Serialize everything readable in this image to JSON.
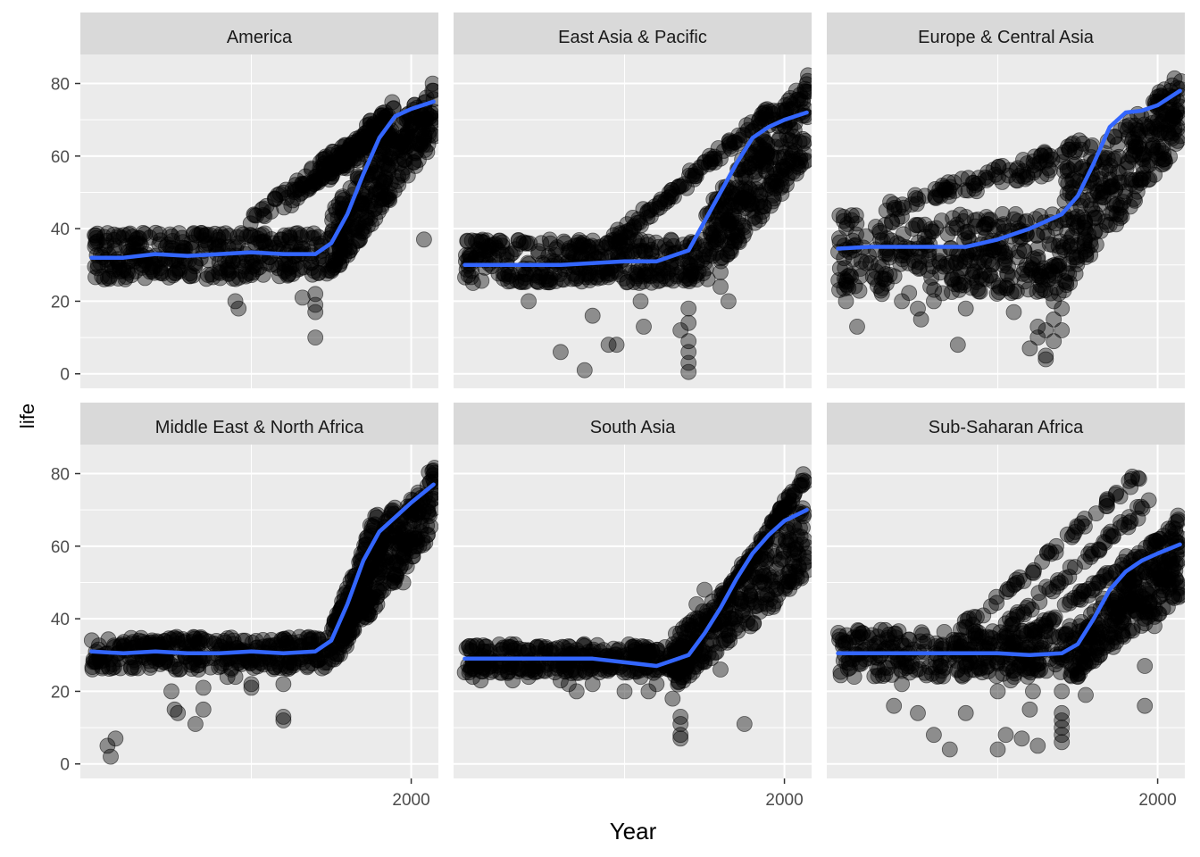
{
  "chart_data": {
    "type": "scatter",
    "xlabel": "Year",
    "ylabel": "life",
    "x_ticks": [
      2000
    ],
    "y_ticks": [
      0,
      20,
      40,
      60,
      80
    ],
    "xlim": [
      1793,
      2017
    ],
    "ylim": [
      -4,
      88
    ],
    "colors": {
      "panel_bg": "#EBEBEB",
      "strip_bg": "#D9D9D9",
      "grid": "#FFFFFF",
      "points": "#000000",
      "smooth": "#3366FF"
    },
    "facets": [
      {
        "title": "America",
        "band": {
          "x0": 1800,
          "x1": 1950,
          "lo": 26,
          "hi": 39
        },
        "arms": [
          {
            "x0": 1900,
            "y0": 42,
            "x1": 1985,
            "y1": 72
          },
          {
            "x0": 1920,
            "y0": 46,
            "x1": 1990,
            "y1": 74
          },
          {
            "x0": 1935,
            "y0": 50,
            "x1": 1985,
            "y1": 70
          },
          {
            "x0": 1945,
            "y0": 54,
            "x1": 1988,
            "y1": 66
          }
        ],
        "rise": {
          "x0": 1950,
          "x1": 2015,
          "lo0": 26,
          "lo1": 64,
          "hi0": 45,
          "hi1": 82
        },
        "outliers": [
          [
            1890,
            20
          ],
          [
            1892,
            18
          ],
          [
            1932,
            21
          ],
          [
            1940,
            17
          ],
          [
            1940,
            19
          ],
          [
            1940,
            10
          ],
          [
            1940,
            22
          ],
          [
            2008,
            37
          ]
        ],
        "smooth": [
          [
            1800,
            32
          ],
          [
            1820,
            32
          ],
          [
            1840,
            33
          ],
          [
            1860,
            32.5
          ],
          [
            1880,
            33
          ],
          [
            1900,
            33.5
          ],
          [
            1920,
            33
          ],
          [
            1940,
            33
          ],
          [
            1950,
            36
          ],
          [
            1960,
            44
          ],
          [
            1970,
            55
          ],
          [
            1980,
            65
          ],
          [
            1990,
            71
          ],
          [
            2000,
            73
          ],
          [
            2014,
            75
          ]
        ]
      },
      {
        "title": "East Asia & Pacific",
        "band": {
          "x0": 1800,
          "x1": 1950,
          "lo": 25,
          "hi": 37
        },
        "arms": [
          {
            "x0": 1890,
            "y0": 36,
            "x1": 1990,
            "y1": 72
          },
          {
            "x0": 1900,
            "y0": 38,
            "x1": 1995,
            "y1": 74
          }
        ],
        "rise": {
          "x0": 1950,
          "x1": 2015,
          "lo0": 25,
          "lo1": 58,
          "hi0": 45,
          "hi1": 84
        },
        "outliers": [
          [
            1840,
            20
          ],
          [
            1860,
            6
          ],
          [
            1875,
            1
          ],
          [
            1880,
            16
          ],
          [
            1890,
            8
          ],
          [
            1895,
            8
          ],
          [
            1910,
            20
          ],
          [
            1912,
            13
          ],
          [
            1925,
            47
          ],
          [
            1935,
            12
          ],
          [
            1940,
            0.5
          ],
          [
            1940,
            3
          ],
          [
            1940,
            6
          ],
          [
            1940,
            9
          ],
          [
            1940,
            14
          ],
          [
            1940,
            18
          ],
          [
            1960,
            28
          ],
          [
            1960,
            24
          ],
          [
            1965,
            20
          ],
          [
            1975,
            56
          ],
          [
            1980,
            45
          ]
        ],
        "smooth": [
          [
            1800,
            30
          ],
          [
            1820,
            30
          ],
          [
            1840,
            30
          ],
          [
            1860,
            30
          ],
          [
            1880,
            30.5
          ],
          [
            1900,
            31
          ],
          [
            1920,
            31
          ],
          [
            1940,
            34
          ],
          [
            1950,
            42
          ],
          [
            1960,
            50
          ],
          [
            1970,
            58
          ],
          [
            1980,
            65
          ],
          [
            1990,
            68
          ],
          [
            2000,
            70
          ],
          [
            2014,
            72
          ]
        ]
      },
      {
        "title": "Europe & Central Asia",
        "band": {
          "x0": 1800,
          "x1": 1940,
          "lo": 22,
          "hi": 44
        },
        "arms": [
          {
            "x0": 1830,
            "y0": 46,
            "x1": 1950,
            "y1": 58
          },
          {
            "x0": 1860,
            "y0": 50,
            "x1": 1960,
            "y1": 64
          }
        ],
        "rise": {
          "x0": 1940,
          "x1": 2015,
          "lo0": 22,
          "lo1": 64,
          "hi0": 52,
          "hi1": 84
        },
        "outliers": [
          [
            1805,
            20
          ],
          [
            1812,
            13
          ],
          [
            1840,
            20
          ],
          [
            1850,
            18
          ],
          [
            1852,
            15
          ],
          [
            1860,
            20
          ],
          [
            1875,
            8
          ],
          [
            1880,
            18
          ],
          [
            1910,
            17
          ],
          [
            1920,
            7
          ],
          [
            1925,
            10
          ],
          [
            1925,
            13
          ],
          [
            1930,
            5
          ],
          [
            1930,
            4
          ],
          [
            1930,
            12
          ],
          [
            1935,
            15
          ],
          [
            1935,
            9
          ],
          [
            1935,
            20
          ],
          [
            1940,
            12
          ],
          [
            1940,
            18
          ],
          [
            1945,
            25
          ],
          [
            1995,
            59
          ]
        ],
        "smooth": [
          [
            1800,
            34.5
          ],
          [
            1820,
            35
          ],
          [
            1840,
            35
          ],
          [
            1860,
            35
          ],
          [
            1880,
            35
          ],
          [
            1900,
            37
          ],
          [
            1920,
            40
          ],
          [
            1940,
            44
          ],
          [
            1950,
            49
          ],
          [
            1960,
            58
          ],
          [
            1970,
            68
          ],
          [
            1980,
            72
          ],
          [
            1990,
            72.5
          ],
          [
            2000,
            74
          ],
          [
            2014,
            78
          ]
        ]
      },
      {
        "title": "Middle East & North Africa",
        "band": {
          "x0": 1800,
          "x1": 1950,
          "lo": 26,
          "hi": 35
        },
        "arms": [
          {
            "x0": 1950,
            "y0": 35,
            "x1": 1980,
            "y1": 70
          },
          {
            "x0": 1960,
            "y0": 36,
            "x1": 1990,
            "y1": 72
          }
        ],
        "rise": {
          "x0": 1950,
          "x1": 2015,
          "lo0": 27,
          "lo1": 64,
          "hi0": 40,
          "hi1": 83
        },
        "outliers": [
          [
            1810,
            5
          ],
          [
            1812,
            2
          ],
          [
            1815,
            7
          ],
          [
            1850,
            20
          ],
          [
            1852,
            15
          ],
          [
            1854,
            14
          ],
          [
            1865,
            11
          ],
          [
            1870,
            15
          ],
          [
            1870,
            21
          ],
          [
            1885,
            24
          ],
          [
            1890,
            24
          ],
          [
            1900,
            22
          ],
          [
            1900,
            21
          ],
          [
            1920,
            12
          ],
          [
            1920,
            13
          ],
          [
            1920,
            22
          ],
          [
            1995,
            50
          ],
          [
            2005,
            60
          ]
        ],
        "smooth": [
          [
            1800,
            31
          ],
          [
            1820,
            30.5
          ],
          [
            1840,
            31
          ],
          [
            1860,
            30.5
          ],
          [
            1880,
            30.5
          ],
          [
            1900,
            31
          ],
          [
            1920,
            30.5
          ],
          [
            1940,
            31
          ],
          [
            1950,
            34
          ],
          [
            1960,
            44
          ],
          [
            1970,
            56
          ],
          [
            1980,
            64
          ],
          [
            1990,
            68
          ],
          [
            2000,
            72
          ],
          [
            2014,
            77
          ]
        ]
      },
      {
        "title": "South Asia",
        "band": {
          "x0": 1800,
          "x1": 1940,
          "lo": 25,
          "hi": 33
        },
        "arms": [
          {
            "x0": 1950,
            "y0": 38,
            "x1": 2005,
            "y1": 74
          },
          {
            "x0": 1970,
            "y0": 50,
            "x1": 2014,
            "y1": 80
          }
        ],
        "rise": {
          "x0": 1930,
          "x1": 2015,
          "lo0": 20,
          "lo1": 51,
          "hi0": 35,
          "hi1": 72
        },
        "outliers": [
          [
            1805,
            24
          ],
          [
            1810,
            23
          ],
          [
            1830,
            23
          ],
          [
            1840,
            24
          ],
          [
            1860,
            23
          ],
          [
            1865,
            22
          ],
          [
            1870,
            20
          ],
          [
            1880,
            22
          ],
          [
            1900,
            20
          ],
          [
            1910,
            24
          ],
          [
            1915,
            20
          ],
          [
            1920,
            22
          ],
          [
            1930,
            18
          ],
          [
            1935,
            8
          ],
          [
            1935,
            7
          ],
          [
            1935,
            11
          ],
          [
            1935,
            13
          ],
          [
            1945,
            44
          ],
          [
            1950,
            48
          ],
          [
            1952,
            40
          ],
          [
            1960,
            26
          ],
          [
            1962,
            34
          ],
          [
            1975,
            11
          ],
          [
            1985,
            44
          ]
        ],
        "smooth": [
          [
            1800,
            29
          ],
          [
            1820,
            29
          ],
          [
            1840,
            29
          ],
          [
            1860,
            29
          ],
          [
            1880,
            29
          ],
          [
            1900,
            28
          ],
          [
            1920,
            27
          ],
          [
            1940,
            30
          ],
          [
            1950,
            36
          ],
          [
            1960,
            43
          ],
          [
            1970,
            51
          ],
          [
            1980,
            58
          ],
          [
            1990,
            63
          ],
          [
            2000,
            67
          ],
          [
            2014,
            70
          ]
        ]
      },
      {
        "title": "Sub-Saharan Africa",
        "band": {
          "x0": 1800,
          "x1": 1950,
          "lo": 24,
          "hi": 37
        },
        "arms": [
          {
            "x0": 1880,
            "y0": 38,
            "x1": 1990,
            "y1": 80
          },
          {
            "x0": 1900,
            "y0": 36,
            "x1": 1995,
            "y1": 72
          },
          {
            "x0": 1920,
            "y0": 36,
            "x1": 2000,
            "y1": 62
          }
        ],
        "rise": {
          "x0": 1950,
          "x1": 2015,
          "lo0": 24,
          "lo1": 46,
          "hi0": 38,
          "hi1": 70
        },
        "outliers": [
          [
            1835,
            16
          ],
          [
            1840,
            22
          ],
          [
            1850,
            14
          ],
          [
            1860,
            8
          ],
          [
            1870,
            4
          ],
          [
            1880,
            14
          ],
          [
            1890,
            35
          ],
          [
            1895,
            33
          ],
          [
            1900,
            20
          ],
          [
            1900,
            4
          ],
          [
            1905,
            8
          ],
          [
            1908,
            23
          ],
          [
            1915,
            7
          ],
          [
            1920,
            15
          ],
          [
            1922,
            20
          ],
          [
            1925,
            5
          ],
          [
            1940,
            6
          ],
          [
            1940,
            8
          ],
          [
            1940,
            10
          ],
          [
            1940,
            12
          ],
          [
            1940,
            14
          ],
          [
            1940,
            20
          ],
          [
            1945,
            38
          ],
          [
            1950,
            24
          ],
          [
            1955,
            19
          ],
          [
            1980,
            49
          ],
          [
            1992,
            27
          ],
          [
            1992,
            16
          ],
          [
            1995,
            42
          ],
          [
            1998,
            38
          ]
        ],
        "smooth": [
          [
            1800,
            30.5
          ],
          [
            1820,
            30.5
          ],
          [
            1840,
            30.5
          ],
          [
            1860,
            30.5
          ],
          [
            1880,
            30.5
          ],
          [
            1900,
            30.5
          ],
          [
            1920,
            30
          ],
          [
            1940,
            30.5
          ],
          [
            1950,
            33
          ],
          [
            1960,
            40
          ],
          [
            1970,
            48
          ],
          [
            1980,
            53
          ],
          [
            1990,
            56
          ],
          [
            2000,
            58
          ],
          [
            2014,
            60.5
          ]
        ]
      }
    ]
  }
}
